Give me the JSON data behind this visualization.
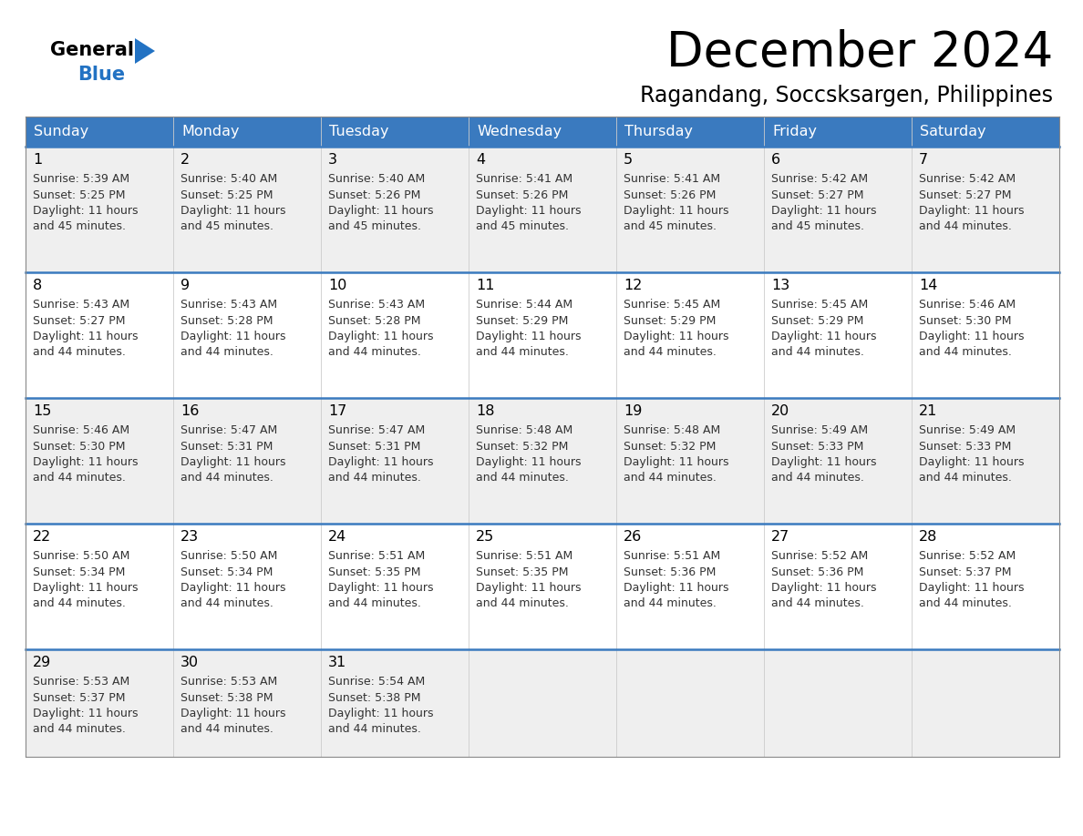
{
  "title": "December 2024",
  "subtitle": "Ragandang, Soccsksargen, Philippines",
  "header_bg_color": "#3a7abf",
  "header_text_color": "#ffffff",
  "weekdays": [
    "Sunday",
    "Monday",
    "Tuesday",
    "Wednesday",
    "Thursday",
    "Friday",
    "Saturday"
  ],
  "bg_color_odd": "#efefef",
  "bg_color_even": "#ffffff",
  "separator_color": "#3a7abf",
  "days": [
    {
      "day": 1,
      "col": 0,
      "row": 0,
      "sunrise": "5:39 AM",
      "sunset": "5:25 PM",
      "daylight_hours": 11,
      "daylight_minutes": 45
    },
    {
      "day": 2,
      "col": 1,
      "row": 0,
      "sunrise": "5:40 AM",
      "sunset": "5:25 PM",
      "daylight_hours": 11,
      "daylight_minutes": 45
    },
    {
      "day": 3,
      "col": 2,
      "row": 0,
      "sunrise": "5:40 AM",
      "sunset": "5:26 PM",
      "daylight_hours": 11,
      "daylight_minutes": 45
    },
    {
      "day": 4,
      "col": 3,
      "row": 0,
      "sunrise": "5:41 AM",
      "sunset": "5:26 PM",
      "daylight_hours": 11,
      "daylight_minutes": 45
    },
    {
      "day": 5,
      "col": 4,
      "row": 0,
      "sunrise": "5:41 AM",
      "sunset": "5:26 PM",
      "daylight_hours": 11,
      "daylight_minutes": 45
    },
    {
      "day": 6,
      "col": 5,
      "row": 0,
      "sunrise": "5:42 AM",
      "sunset": "5:27 PM",
      "daylight_hours": 11,
      "daylight_minutes": 45
    },
    {
      "day": 7,
      "col": 6,
      "row": 0,
      "sunrise": "5:42 AM",
      "sunset": "5:27 PM",
      "daylight_hours": 11,
      "daylight_minutes": 44
    },
    {
      "day": 8,
      "col": 0,
      "row": 1,
      "sunrise": "5:43 AM",
      "sunset": "5:27 PM",
      "daylight_hours": 11,
      "daylight_minutes": 44
    },
    {
      "day": 9,
      "col": 1,
      "row": 1,
      "sunrise": "5:43 AM",
      "sunset": "5:28 PM",
      "daylight_hours": 11,
      "daylight_minutes": 44
    },
    {
      "day": 10,
      "col": 2,
      "row": 1,
      "sunrise": "5:43 AM",
      "sunset": "5:28 PM",
      "daylight_hours": 11,
      "daylight_minutes": 44
    },
    {
      "day": 11,
      "col": 3,
      "row": 1,
      "sunrise": "5:44 AM",
      "sunset": "5:29 PM",
      "daylight_hours": 11,
      "daylight_minutes": 44
    },
    {
      "day": 12,
      "col": 4,
      "row": 1,
      "sunrise": "5:45 AM",
      "sunset": "5:29 PM",
      "daylight_hours": 11,
      "daylight_minutes": 44
    },
    {
      "day": 13,
      "col": 5,
      "row": 1,
      "sunrise": "5:45 AM",
      "sunset": "5:29 PM",
      "daylight_hours": 11,
      "daylight_minutes": 44
    },
    {
      "day": 14,
      "col": 6,
      "row": 1,
      "sunrise": "5:46 AM",
      "sunset": "5:30 PM",
      "daylight_hours": 11,
      "daylight_minutes": 44
    },
    {
      "day": 15,
      "col": 0,
      "row": 2,
      "sunrise": "5:46 AM",
      "sunset": "5:30 PM",
      "daylight_hours": 11,
      "daylight_minutes": 44
    },
    {
      "day": 16,
      "col": 1,
      "row": 2,
      "sunrise": "5:47 AM",
      "sunset": "5:31 PM",
      "daylight_hours": 11,
      "daylight_minutes": 44
    },
    {
      "day": 17,
      "col": 2,
      "row": 2,
      "sunrise": "5:47 AM",
      "sunset": "5:31 PM",
      "daylight_hours": 11,
      "daylight_minutes": 44
    },
    {
      "day": 18,
      "col": 3,
      "row": 2,
      "sunrise": "5:48 AM",
      "sunset": "5:32 PM",
      "daylight_hours": 11,
      "daylight_minutes": 44
    },
    {
      "day": 19,
      "col": 4,
      "row": 2,
      "sunrise": "5:48 AM",
      "sunset": "5:32 PM",
      "daylight_hours": 11,
      "daylight_minutes": 44
    },
    {
      "day": 20,
      "col": 5,
      "row": 2,
      "sunrise": "5:49 AM",
      "sunset": "5:33 PM",
      "daylight_hours": 11,
      "daylight_minutes": 44
    },
    {
      "day": 21,
      "col": 6,
      "row": 2,
      "sunrise": "5:49 AM",
      "sunset": "5:33 PM",
      "daylight_hours": 11,
      "daylight_minutes": 44
    },
    {
      "day": 22,
      "col": 0,
      "row": 3,
      "sunrise": "5:50 AM",
      "sunset": "5:34 PM",
      "daylight_hours": 11,
      "daylight_minutes": 44
    },
    {
      "day": 23,
      "col": 1,
      "row": 3,
      "sunrise": "5:50 AM",
      "sunset": "5:34 PM",
      "daylight_hours": 11,
      "daylight_minutes": 44
    },
    {
      "day": 24,
      "col": 2,
      "row": 3,
      "sunrise": "5:51 AM",
      "sunset": "5:35 PM",
      "daylight_hours": 11,
      "daylight_minutes": 44
    },
    {
      "day": 25,
      "col": 3,
      "row": 3,
      "sunrise": "5:51 AM",
      "sunset": "5:35 PM",
      "daylight_hours": 11,
      "daylight_minutes": 44
    },
    {
      "day": 26,
      "col": 4,
      "row": 3,
      "sunrise": "5:51 AM",
      "sunset": "5:36 PM",
      "daylight_hours": 11,
      "daylight_minutes": 44
    },
    {
      "day": 27,
      "col": 5,
      "row": 3,
      "sunrise": "5:52 AM",
      "sunset": "5:36 PM",
      "daylight_hours": 11,
      "daylight_minutes": 44
    },
    {
      "day": 28,
      "col": 6,
      "row": 3,
      "sunrise": "5:52 AM",
      "sunset": "5:37 PM",
      "daylight_hours": 11,
      "daylight_minutes": 44
    },
    {
      "day": 29,
      "col": 0,
      "row": 4,
      "sunrise": "5:53 AM",
      "sunset": "5:37 PM",
      "daylight_hours": 11,
      "daylight_minutes": 44
    },
    {
      "day": 30,
      "col": 1,
      "row": 4,
      "sunrise": "5:53 AM",
      "sunset": "5:38 PM",
      "daylight_hours": 11,
      "daylight_minutes": 44
    },
    {
      "day": 31,
      "col": 2,
      "row": 4,
      "sunrise": "5:54 AM",
      "sunset": "5:38 PM",
      "daylight_hours": 11,
      "daylight_minutes": 44
    }
  ]
}
